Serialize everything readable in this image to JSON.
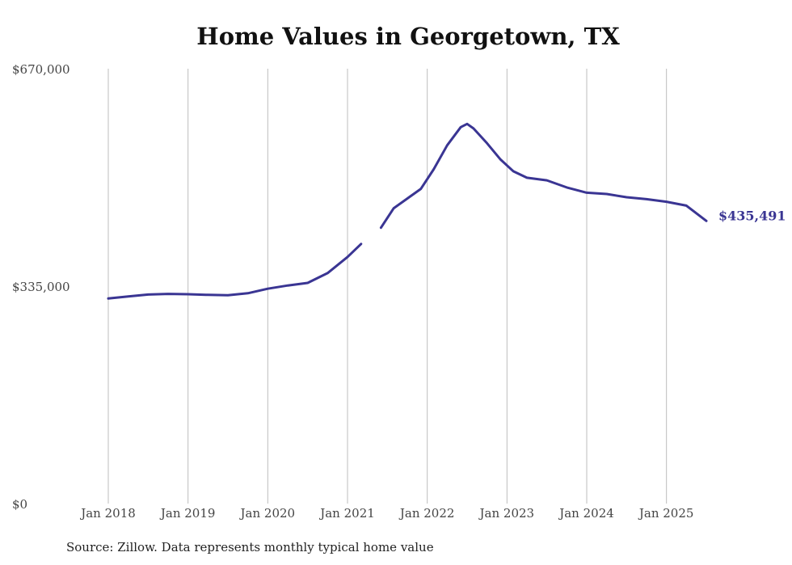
{
  "chart_data": {
    "type": "line",
    "title": "Home Values in Georgetown, TX",
    "source": "Source: Zillow. Data represents monthly typical home value",
    "yticks": [
      0,
      335000,
      670000
    ],
    "ytick_labels": [
      "$0",
      "$335,000",
      "$670,000"
    ],
    "ylim": [
      0,
      670000
    ],
    "xticks": [
      2018,
      2019,
      2020,
      2021,
      2022,
      2023,
      2024,
      2025
    ],
    "xtick_labels": [
      "Jan 2018",
      "Jan 2019",
      "Jan 2020",
      "Jan 2021",
      "Jan 2022",
      "Jan 2023",
      "Jan 2024",
      "Jan 2025"
    ],
    "xlim": [
      2018,
      2025.5
    ],
    "grid": "vertical",
    "line_color": "#3a3593",
    "end_label": "$435,491",
    "segments": [
      {
        "x": [
          2018.0,
          2018.25,
          2018.5,
          2018.75,
          2019.0,
          2019.25,
          2019.5,
          2019.75,
          2020.0,
          2020.25,
          2020.5,
          2020.75,
          2021.0,
          2021.17
        ],
        "y": [
          316000,
          319000,
          322000,
          323000,
          322500,
          321500,
          321000,
          324000,
          331000,
          336000,
          340000,
          355000,
          380000,
          400000
        ]
      },
      {
        "x": [
          2021.42,
          2021.58,
          2021.75,
          2021.92,
          2022.08,
          2022.25,
          2022.42,
          2022.5,
          2022.58,
          2022.75,
          2022.92,
          2023.08,
          2023.25,
          2023.5,
          2023.75,
          2024.0,
          2024.25,
          2024.5,
          2024.75,
          2025.0,
          2025.25,
          2025.5
        ],
        "y": [
          425000,
          455000,
          470000,
          485000,
          515000,
          552000,
          580000,
          585000,
          578000,
          555000,
          530000,
          512000,
          502000,
          498000,
          487000,
          479000,
          477000,
          472000,
          469000,
          465000,
          459000,
          435491
        ]
      }
    ]
  }
}
